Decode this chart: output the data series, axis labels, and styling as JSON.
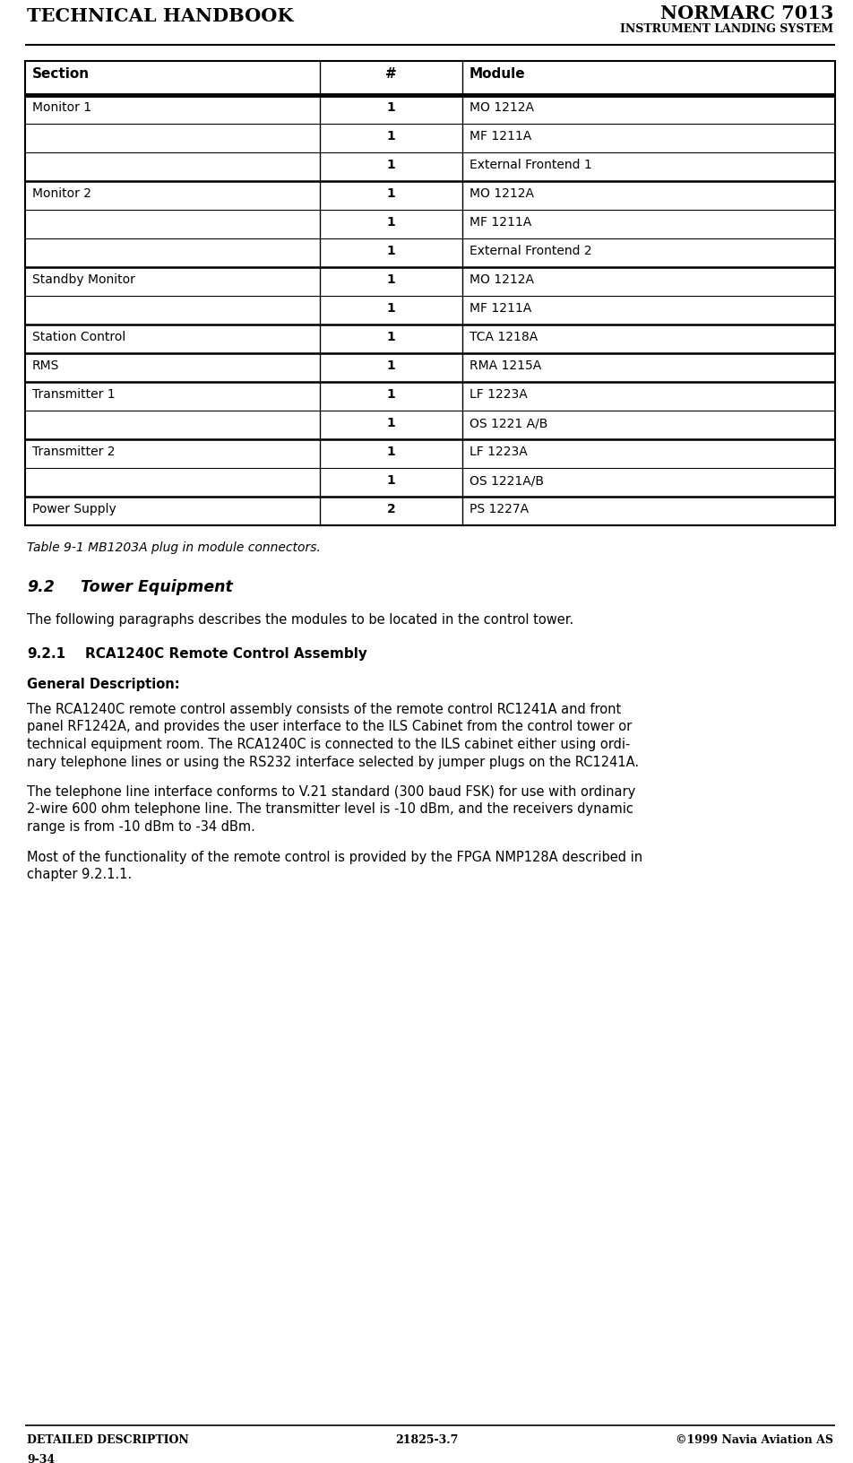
{
  "header_left": "TECHNICAL HANDBOOK",
  "header_right_top": "NORMARC 7013",
  "header_right_bottom": "INSTRUMENT LANDING SYSTEM",
  "footer_left": "DETAILED DESCRIPTION",
  "footer_center": "21825-3.7",
  "footer_right": "©1999 Navia Aviation AS",
  "footer_page": "9-34",
  "table_caption": "Table 9-1 MB1203A plug in module connectors.",
  "table_headers": [
    "Section",
    "#",
    "Module"
  ],
  "table_rows": [
    [
      "Monitor 1",
      "1",
      "MO 1212A"
    ],
    [
      "",
      "1",
      "MF 1211A"
    ],
    [
      "",
      "1",
      "External Frontend 1"
    ],
    [
      "Monitor 2",
      "1",
      "MO 1212A"
    ],
    [
      "",
      "1",
      "MF 1211A"
    ],
    [
      "",
      "1",
      "External Frontend 2"
    ],
    [
      "Standby Monitor",
      "1",
      "MO 1212A"
    ],
    [
      "",
      "1",
      "MF 1211A"
    ],
    [
      "Station Control",
      "1",
      "TCA 1218A"
    ],
    [
      "RMS",
      "1",
      "RMA 1215A"
    ],
    [
      "Transmitter 1",
      "1",
      "LF 1223A"
    ],
    [
      "",
      "1",
      "OS 1221 A/B"
    ],
    [
      "Transmitter 2",
      "1",
      "LF 1223A"
    ],
    [
      "",
      "1",
      "OS 1221A/B"
    ],
    [
      "Power Supply",
      "2",
      "PS 1227A"
    ]
  ],
  "section_groups_start": [
    0,
    3,
    6,
    8,
    9,
    10,
    12,
    14
  ],
  "section_title_num": "9.2",
  "section_title_text": "Tower Equipment",
  "section_intro": "The following paragraphs describes the modules to be located in the control tower.",
  "subsection_title_num": "9.2.1",
  "subsection_title_text": "RCA1240C Remote Control Assembly",
  "bold_label": "General Description:",
  "para1_lines": [
    "The RCA1240C remote control assembly consists of the remote control RC1241A and front",
    "panel RF1242A, and provides the user interface to the ILS Cabinet from the control tower or",
    "technical equipment room. The RCA1240C is connected to the ILS cabinet either using ordi-",
    "nary telephone lines or using the RS232 interface selected by jumper plugs on the RC1241A."
  ],
  "para2_lines": [
    "The telephone line interface conforms to V.21 standard (300 baud FSK) for use with ordinary",
    "2-wire 600 ohm telephone line. The transmitter level is -10 dBm, and the receivers dynamic",
    "range is from -10 dBm to -34 dBm."
  ],
  "para3_lines": [
    "Most of the functionality of the remote control is provided by the FPGA NMP128A described in",
    "chapter 9.2.1.1."
  ],
  "bg_color": "#ffffff",
  "text_color": "#000000"
}
